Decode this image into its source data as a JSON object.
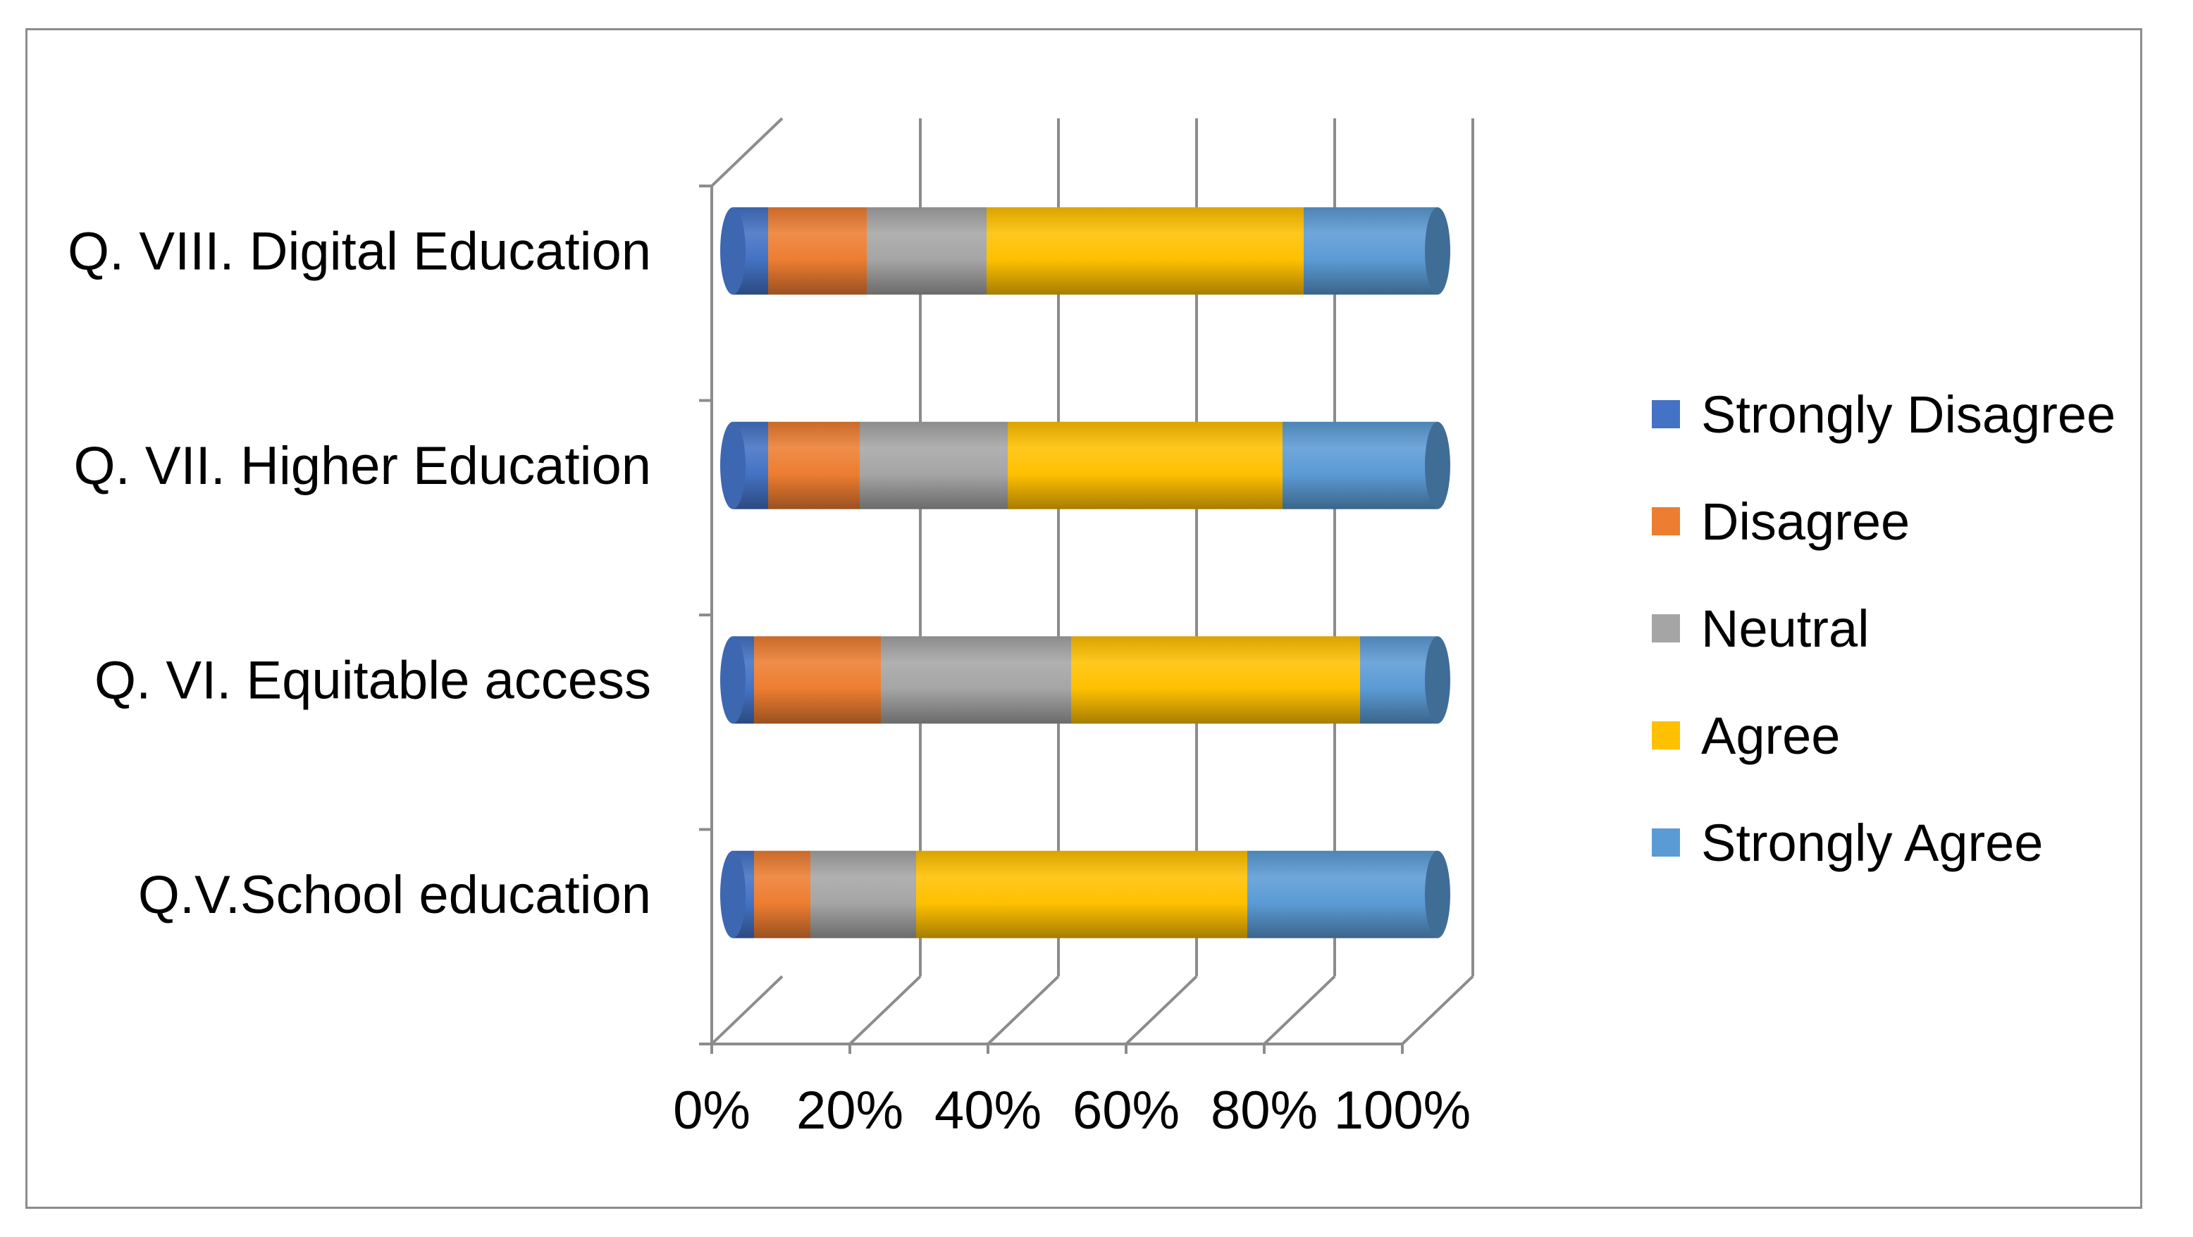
{
  "chart_data": {
    "type": "bar",
    "orientation": "horizontal",
    "stacked": "percent",
    "style": "3d-cylinder",
    "title": "",
    "xlabel": "",
    "ylabel": "",
    "xlim": [
      0,
      100
    ],
    "x_ticks": [
      "0%",
      "20%",
      "40%",
      "60%",
      "80%",
      "100%"
    ],
    "grid": true,
    "legend_position": "right",
    "categories": [
      "Q.V.School education",
      "Q. VI. Equitable access",
      "Q. VII. Higher Education",
      "Q. VIII. Digital Education"
    ],
    "series": [
      {
        "name": "Strongly Disagree",
        "color": "#4472c4",
        "values": [
          3,
          3,
          5,
          5
        ]
      },
      {
        "name": "Disagree",
        "color": "#ed7d31",
        "values": [
          8,
          18,
          13,
          14
        ]
      },
      {
        "name": "Neutral",
        "color": "#a5a5a5",
        "values": [
          15,
          27,
          21,
          17
        ]
      },
      {
        "name": "Agree",
        "color": "#ffc000",
        "values": [
          47,
          41,
          39,
          45
        ]
      },
      {
        "name": "Strongly Agree",
        "color": "#5b9bd5",
        "values": [
          27,
          11,
          22,
          19
        ]
      }
    ]
  }
}
